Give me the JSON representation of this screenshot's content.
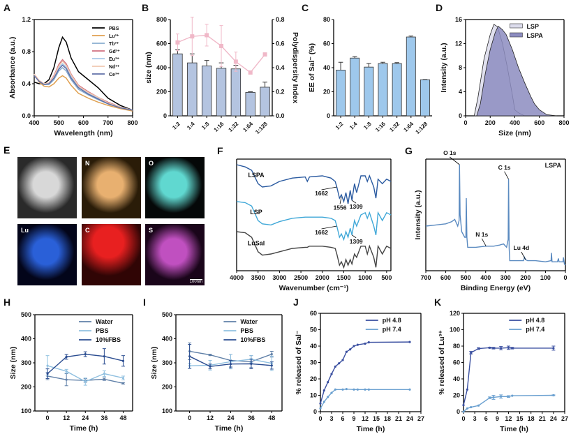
{
  "panel_e": {
    "label": "E",
    "maps": [
      {
        "element": "",
        "color": "#d8d8d8",
        "bg": "#2a2a2a"
      },
      {
        "element": "N",
        "color": "#e8b070",
        "bg": "#2a1c08"
      },
      {
        "element": "O",
        "color": "#60d8d0",
        "bg": "#050808"
      },
      {
        "element": "Lu",
        "color": "#2a60d8",
        "bg": "#03051a"
      },
      {
        "element": "C",
        "color": "#e82020",
        "bg": "#300505"
      },
      {
        "element": "S",
        "color": "#c050c0",
        "bg": "#1a051a"
      }
    ],
    "scale_bar": "100nm"
  },
  "chart_data": [
    {
      "label": "A",
      "type": "line",
      "xlabel": "Wavelength (nm)",
      "ylabel": "Absorbance (a.u.)",
      "xlim": [
        400,
        800
      ],
      "ylim": [
        0,
        1.2
      ],
      "xticks": [
        400,
        500,
        600,
        700,
        800
      ],
      "yticks": [
        "0.0",
        "0.4",
        "0.8",
        "1.2"
      ],
      "x": [
        400,
        420,
        440,
        460,
        480,
        500,
        515,
        530,
        550,
        580,
        620,
        660,
        700,
        750,
        800
      ],
      "series": [
        {
          "name": "PBS",
          "color": "#000000",
          "values": [
            0.42,
            0.4,
            0.4,
            0.45,
            0.6,
            0.85,
            0.98,
            0.92,
            0.72,
            0.55,
            0.45,
            0.35,
            0.22,
            0.13,
            0.07
          ]
        },
        {
          "name": "Lu³⁺",
          "color": "#e0a050",
          "values": [
            0.52,
            0.42,
            0.37,
            0.36,
            0.4,
            0.47,
            0.5,
            0.47,
            0.38,
            0.28,
            0.22,
            0.17,
            0.13,
            0.09,
            0.06
          ]
        },
        {
          "name": "Tb³⁺",
          "color": "#8aaed0",
          "values": [
            0.52,
            0.43,
            0.39,
            0.39,
            0.45,
            0.56,
            0.6,
            0.56,
            0.45,
            0.33,
            0.26,
            0.2,
            0.15,
            0.1,
            0.07
          ]
        },
        {
          "name": "Gd³⁺",
          "color": "#d07080",
          "values": [
            0.52,
            0.44,
            0.4,
            0.41,
            0.5,
            0.64,
            0.7,
            0.65,
            0.52,
            0.38,
            0.3,
            0.23,
            0.17,
            0.11,
            0.07
          ]
        },
        {
          "name": "Eu³⁺",
          "color": "#a8c8e8",
          "values": [
            0.52,
            0.43,
            0.4,
            0.4,
            0.48,
            0.6,
            0.65,
            0.61,
            0.49,
            0.36,
            0.28,
            0.22,
            0.16,
            0.11,
            0.07
          ]
        },
        {
          "name": "Nd³⁺",
          "color": "#f0c8b0",
          "values": [
            0.52,
            0.44,
            0.4,
            0.41,
            0.49,
            0.62,
            0.68,
            0.63,
            0.51,
            0.37,
            0.29,
            0.23,
            0.16,
            0.11,
            0.07
          ]
        },
        {
          "name": "Ce³⁺",
          "color": "#6070a8",
          "values": [
            0.5,
            0.43,
            0.39,
            0.4,
            0.47,
            0.58,
            0.63,
            0.59,
            0.47,
            0.35,
            0.27,
            0.21,
            0.15,
            0.1,
            0.07
          ]
        }
      ],
      "legend": "top-right"
    },
    {
      "label": "B",
      "type": "bar",
      "ylabel": "size (nm)",
      "y2label": "Polydispersity Index",
      "categories": [
        "1:2",
        "1:4",
        "1:8",
        "1:16",
        "1:32",
        "1:64",
        "1:128"
      ],
      "ylim": [
        0,
        800
      ],
      "yticks": [
        "0",
        "200",
        "400",
        "600",
        "800"
      ],
      "y2lim": [
        0,
        0.8
      ],
      "y2ticks": [
        "0.0",
        "0.2",
        "0.4",
        "0.6",
        "0.8"
      ],
      "series": [
        {
          "kind": "bar",
          "color": "#b4c4e0",
          "values": [
            515,
            440,
            415,
            395,
            390,
            195,
            238
          ],
          "errors": [
            35,
            75,
            45,
            45,
            30,
            5,
            42
          ]
        },
        {
          "kind": "line",
          "axis": "y2",
          "color": "#f0b8c8",
          "values": [
            0.61,
            0.66,
            0.67,
            0.58,
            0.45,
            0.36,
            0.51
          ],
          "errors": [
            0.07,
            0.16,
            0.09,
            0.17,
            0.08,
            0,
            0
          ]
        }
      ]
    },
    {
      "label": "C",
      "type": "bar",
      "ylabel": "EE of Sal⁻ (%)",
      "categories": [
        "1:2",
        "1:4",
        "1:8",
        "1:16",
        "1:32",
        "1:64",
        "1:128"
      ],
      "ylim": [
        0,
        80
      ],
      "yticks": [
        "0",
        "20",
        "40",
        "60",
        "80"
      ],
      "series": [
        {
          "kind": "bar",
          "color": "#9ec8ec",
          "values": [
            38,
            48,
            40.5,
            43.5,
            43.5,
            65.5,
            30
          ],
          "errors": [
            6.5,
            1.2,
            3,
            1,
            0.7,
            0.8,
            0.2
          ]
        }
      ]
    },
    {
      "label": "D",
      "type": "area",
      "xlabel": "Size (nm)",
      "ylabel": "Intensity (a.u.)",
      "xlim": [
        0,
        800
      ],
      "ylim": [
        0,
        16
      ],
      "xticks": [
        0,
        200,
        400,
        600,
        800
      ],
      "yticks": [
        "0",
        "4",
        "8",
        "12",
        "16"
      ],
      "series": [
        {
          "name": "LSP",
          "color": "#dcdcec",
          "x": [
            70,
            100,
            150,
            200,
            230,
            260,
            300,
            340,
            380,
            400,
            430,
            480
          ],
          "values": [
            0,
            3,
            9.5,
            13.5,
            15.2,
            14.8,
            12,
            8,
            3.5,
            1,
            0.5,
            0
          ]
        },
        {
          "name": "LSPA",
          "color": "#8c8cc0",
          "x": [
            90,
            120,
            160,
            200,
            240,
            265,
            300,
            330,
            380,
            430,
            480,
            530,
            560,
            600,
            660,
            740
          ],
          "values": [
            0,
            2,
            7,
            11,
            13.8,
            14.9,
            14.3,
            13.5,
            11,
            8,
            5.5,
            3.2,
            2,
            1,
            0.2,
            0
          ]
        }
      ],
      "legend": "top-right"
    },
    {
      "label": "F",
      "type": "line",
      "xlabel": "Wavenumber (cm⁻¹)",
      "xlim": [
        4000,
        400
      ],
      "ylim": [
        0,
        100
      ],
      "xticks": [
        4000,
        3500,
        3000,
        2500,
        2000,
        1500,
        1000,
        500
      ],
      "yticks": [],
      "x": [
        4000,
        3800,
        3650,
        3500,
        3400,
        3200,
        3000,
        2700,
        2400,
        2350,
        2300,
        2000,
        1800,
        1700,
        1662,
        1600,
        1556,
        1500,
        1450,
        1400,
        1350,
        1309,
        1250,
        1200,
        1100,
        1000,
        950,
        900,
        800,
        750,
        700,
        600,
        500,
        400
      ],
      "series": [
        {
          "name": "LSPA",
          "color": "#2a5aa0",
          "values": [
            95,
            93,
            90,
            78,
            75,
            76,
            80,
            83,
            84,
            80,
            84,
            85,
            83,
            80,
            75,
            65,
            68,
            62,
            70,
            60,
            72,
            63,
            78,
            70,
            85,
            85,
            80,
            85,
            75,
            65,
            82,
            78,
            82,
            80
          ]
        },
        {
          "name": "LSP",
          "color": "#40a8d8",
          "values": [
            62,
            61,
            58,
            45,
            42,
            41,
            44,
            47,
            48,
            48,
            48,
            48,
            47,
            45,
            40,
            30,
            33,
            28,
            35,
            30,
            38,
            32,
            45,
            40,
            50,
            52,
            47,
            52,
            40,
            32,
            52,
            45,
            52,
            50
          ]
        },
        {
          "name": "LuSal",
          "color": "#444444",
          "values": [
            35,
            34,
            30,
            17,
            14,
            15,
            17,
            20,
            21,
            21,
            22,
            22,
            21,
            20,
            15,
            5,
            8,
            3,
            10,
            5,
            10,
            6,
            15,
            12,
            22,
            22,
            15,
            22,
            12,
            3,
            22,
            15,
            22,
            20
          ]
        }
      ],
      "annotations": [
        {
          "text": "1662",
          "x": 1662,
          "y": 75
        },
        {
          "text": "1556",
          "x": 1556,
          "y": 66
        },
        {
          "text": "1309",
          "x": 1309,
          "y": 63
        },
        {
          "text": "1662",
          "x": 1662,
          "y": 40
        },
        {
          "text": "1309",
          "x": 1309,
          "y": 32
        }
      ]
    },
    {
      "label": "G",
      "type": "line",
      "xlabel": "Binding Energy (eV)",
      "ylabel": "Intensity (a.u.)",
      "tag": "LSPA",
      "xlim": [
        700,
        0
      ],
      "ylim": [
        0,
        100
      ],
      "xticks": [
        700,
        600,
        500,
        400,
        300,
        200,
        100,
        0
      ],
      "yticks": [],
      "series": [
        {
          "color": "#5a8ac0",
          "x": [
            700,
            650,
            600,
            570,
            555,
            540,
            533,
            531,
            528,
            520,
            505,
            499,
            497,
            494,
            490,
            450,
            400,
            360,
            330,
            310,
            295,
            287,
            285,
            282,
            279,
            250,
            210,
            205,
            200,
            190,
            150,
            100,
            72,
            70,
            67,
            40,
            35,
            32,
            12,
            10,
            5,
            0
          ],
          "values": [
            40,
            41,
            42,
            44,
            46,
            40,
            45,
            95,
            50,
            35,
            30,
            30,
            65,
            30,
            21,
            21,
            22,
            22,
            23,
            24,
            21,
            28,
            82,
            20,
            9,
            9,
            9,
            12,
            10,
            9,
            9,
            8,
            9,
            16,
            8,
            8,
            11,
            8,
            8,
            12,
            6,
            5
          ]
        }
      ],
      "annotations": [
        {
          "text": "O 1s",
          "x": 531,
          "y": 95
        },
        {
          "text": "C 1s",
          "x": 285,
          "y": 82
        },
        {
          "text": "N 1s",
          "x": 398,
          "y": 22
        },
        {
          "text": "Lu 4d",
          "x": 200,
          "y": 10
        }
      ]
    },
    {
      "label": "H",
      "type": "line",
      "xlabel": "Time (h)",
      "ylabel": "Size (nm)",
      "xlim": [
        -8,
        54
      ],
      "ylim": [
        100,
        500
      ],
      "xticks": [
        0,
        12,
        24,
        36,
        48
      ],
      "yticks": [
        "100",
        "200",
        "300",
        "400",
        "500"
      ],
      "x": [
        0,
        12,
        24,
        36,
        48
      ],
      "series": [
        {
          "name": "Water",
          "color": "#6080a8",
          "values": [
            245,
            230,
            227,
            232,
            215
          ],
          "errors": [
            15,
            25,
            8,
            5,
            3
          ]
        },
        {
          "name": "PBS",
          "color": "#90c0e0",
          "values": [
            288,
            265,
            222,
            255,
            237
          ],
          "errors": [
            42,
            8,
            15,
            12,
            8
          ]
        },
        {
          "name": "10%FBS",
          "color": "#2a4c90",
          "values": [
            255,
            325,
            336,
            327,
            308
          ],
          "errors": [
            20,
            10,
            10,
            32,
            22
          ]
        }
      ],
      "legend": "top-right"
    },
    {
      "label": "I",
      "type": "line",
      "xlabel": "Time (h)",
      "ylabel": "Size (nm)",
      "xlim": [
        -8,
        54
      ],
      "ylim": [
        100,
        500
      ],
      "xticks": [
        0,
        12,
        24,
        36,
        48
      ],
      "yticks": [
        "100",
        "200",
        "300",
        "400",
        "500"
      ],
      "x": [
        0,
        12,
        24,
        36,
        48
      ],
      "series": [
        {
          "name": "Water",
          "color": "#6080a8",
          "values": [
            348,
            333,
            310,
            305,
            336
          ],
          "errors": [
            35,
            3,
            25,
            25,
            12
          ]
        },
        {
          "name": "PBS",
          "color": "#90c0e0",
          "values": [
            288,
            290,
            305,
            315,
            298
          ],
          "errors": [
            10,
            20,
            30,
            15,
            30
          ]
        },
        {
          "name": "10%FBS",
          "color": "#2a4c90",
          "values": [
            327,
            285,
            295,
            296,
            289
          ],
          "errors": [
            50,
            10,
            15,
            20,
            15
          ]
        }
      ],
      "legend": "top-right"
    },
    {
      "label": "J",
      "type": "line",
      "xlabel": "Time (h)",
      "ylabel": "% released of Sal⁻",
      "xlim": [
        0,
        27
      ],
      "ylim": [
        0,
        60
      ],
      "xticks": [
        0,
        3,
        6,
        9,
        12,
        15,
        18,
        21,
        24,
        27
      ],
      "yticks": [
        "0",
        "10",
        "20",
        "30",
        "40",
        "50",
        "60"
      ],
      "series": [
        {
          "name": "pH 4.8",
          "color": "#3a4fa0",
          "x": [
            0,
            1,
            2,
            3,
            4,
            5,
            6,
            7,
            8,
            9,
            10,
            12,
            13,
            24
          ],
          "values": [
            5,
            13,
            18,
            23,
            27.5,
            29.5,
            31.5,
            36.5,
            38,
            40,
            40.8,
            41.5,
            42.3,
            42.5
          ]
        },
        {
          "name": "pH 7.4",
          "color": "#6aa0d0",
          "x": [
            0,
            1,
            2,
            3,
            4,
            6,
            7,
            9,
            10,
            12,
            13,
            24
          ],
          "values": [
            2,
            6,
            9,
            11.5,
            13.5,
            13.5,
            13.8,
            13.5,
            13.5,
            13.5,
            13.5,
            13.5
          ]
        }
      ],
      "legend": "top-right"
    },
    {
      "label": "K",
      "type": "line",
      "xlabel": "Time (h)",
      "ylabel": "% released of Lu³⁺",
      "xlim": [
        0,
        27
      ],
      "ylim": [
        0,
        120
      ],
      "xticks": [
        0,
        3,
        6,
        9,
        12,
        15,
        18,
        21,
        24,
        27
      ],
      "yticks": [
        "0",
        "20",
        "40",
        "60",
        "80",
        "100",
        "120"
      ],
      "series": [
        {
          "name": "pH 4.8",
          "color": "#3a4fa0",
          "x": [
            0,
            1,
            2,
            4,
            7,
            8,
            10,
            12,
            13,
            24
          ],
          "values": [
            8,
            27,
            72,
            77,
            78,
            77.5,
            77.5,
            78,
            77.5,
            77.5
          ],
          "errors": [
            0,
            0,
            1.5,
            1,
            0.5,
            1,
            2,
            2,
            1,
            2.5
          ]
        },
        {
          "name": "pH 7.4",
          "color": "#6aa0d0",
          "x": [
            0,
            1,
            2,
            4,
            7,
            8,
            10,
            12,
            13,
            24
          ],
          "values": [
            0,
            4,
            5.5,
            7.5,
            17,
            17.5,
            18.5,
            18.5,
            19.5,
            20
          ],
          "errors": [
            0,
            0,
            0,
            0,
            1,
            2.5,
            2,
            1,
            0,
            0.5
          ]
        }
      ],
      "legend": "top-right"
    }
  ]
}
